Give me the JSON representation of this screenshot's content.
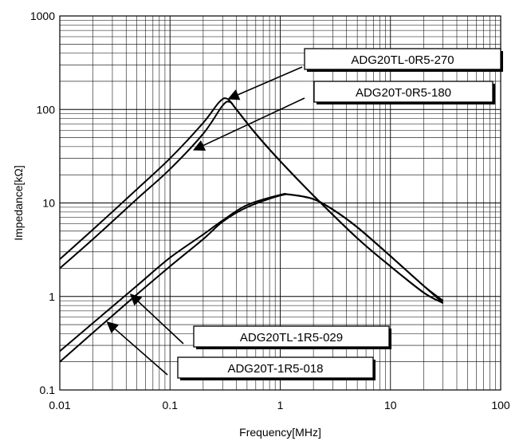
{
  "chart_data": {
    "type": "line",
    "xlabel": "Frequency[MHz]",
    "ylabel": "Impedance[kΩ]",
    "x_scale": "log",
    "y_scale": "log",
    "xlim": [
      0.01,
      100
    ],
    "ylim": [
      0.1,
      1000
    ],
    "x_ticks": [
      "0.01",
      "0.1",
      "1",
      "10",
      "100"
    ],
    "y_ticks": [
      "0.1",
      "1",
      "10",
      "100",
      "1000"
    ],
    "grid": true,
    "series": [
      {
        "name": "ADG20TL-0R5-270",
        "x": [
          0.01,
          0.02,
          0.05,
          0.1,
          0.2,
          0.28,
          0.33,
          0.4,
          0.6,
          1,
          2,
          5,
          10,
          20,
          30
        ],
        "y": [
          2.5,
          5.2,
          14,
          30,
          72,
          120,
          130,
          100,
          55,
          28,
          12,
          4.2,
          2.1,
          1.1,
          0.85
        ]
      },
      {
        "name": "ADG20T-0R5-180",
        "x": [
          0.01,
          0.02,
          0.05,
          0.1,
          0.2,
          0.3,
          0.35,
          0.4,
          0.6,
          1,
          2,
          5,
          10,
          20,
          30
        ],
        "y": [
          2.0,
          4.1,
          11,
          23,
          55,
          110,
          120,
          100,
          55,
          28,
          12,
          4.2,
          2.1,
          1.1,
          0.85
        ]
      },
      {
        "name": "ADG20TL-1R5-029",
        "x": [
          0.01,
          0.02,
          0.05,
          0.1,
          0.2,
          0.3,
          0.5,
          1,
          1.2,
          2,
          3,
          5,
          10,
          20,
          30
        ],
        "y": [
          0.26,
          0.52,
          1.3,
          2.6,
          4.6,
          6.5,
          9.5,
          12.2,
          12.3,
          11,
          8.5,
          5.5,
          2.7,
          1.3,
          0.9
        ]
      },
      {
        "name": "ADG20T-1R5-018",
        "x": [
          0.01,
          0.02,
          0.05,
          0.1,
          0.2,
          0.3,
          0.5,
          1,
          1.3,
          2,
          3,
          5,
          10,
          20,
          30
        ],
        "y": [
          0.2,
          0.41,
          1.05,
          2.1,
          4.1,
          6.3,
          9.0,
          12.0,
          12.2,
          11,
          8.5,
          5.5,
          2.7,
          1.3,
          0.85
        ]
      }
    ],
    "callouts": [
      {
        "label": "ADG20TL-0R5-270",
        "target": [
          0.34,
          130
        ]
      },
      {
        "label": "ADG20T-0R5-180",
        "target": [
          0.165,
          37
        ]
      },
      {
        "label": "ADG20TL-1R5-029",
        "target": [
          0.044,
          1.05
        ]
      },
      {
        "label": "ADG20T-1R5-018",
        "target": [
          0.027,
          0.53
        ]
      }
    ]
  }
}
